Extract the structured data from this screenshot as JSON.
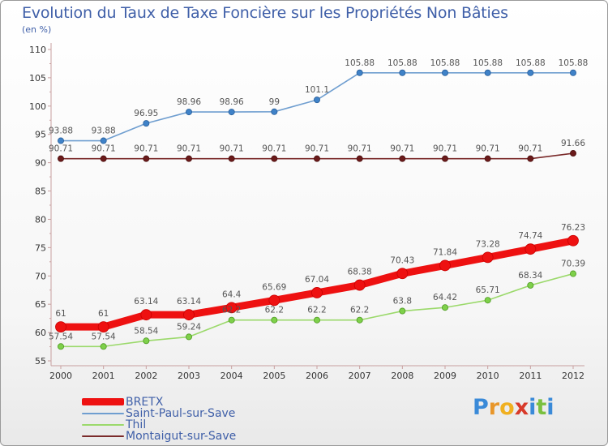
{
  "chart_data": {
    "type": "line",
    "title": "Evolution du Taux de Taxe Foncière sur les Propriétés Non Bâties",
    "subtitle": "(en %)",
    "xlabel": "",
    "ylabel": "",
    "x": [
      "2000",
      "2001",
      "2002",
      "2003",
      "2004",
      "2005",
      "2006",
      "2007",
      "2008",
      "2009",
      "2010",
      "2011",
      "2012"
    ],
    "ylim": [
      55,
      110
    ],
    "yticks": [
      55,
      60,
      65,
      70,
      75,
      80,
      85,
      90,
      95,
      100,
      105,
      110
    ],
    "grid": false,
    "legend_position": "bottom-left",
    "series": [
      {
        "name": "BRETX",
        "color": "#ee1111",
        "labels": [
          "61",
          "61",
          "63.14",
          "63.14",
          "64.4",
          "65.69",
          "67.04",
          "68.38",
          "70.43",
          "71.84",
          "73.28",
          "74.74",
          "76.23"
        ],
        "values": [
          61,
          61,
          63.14,
          63.14,
          64.4,
          65.69,
          67.04,
          68.38,
          70.43,
          71.84,
          73.28,
          74.74,
          76.23
        ]
      },
      {
        "name": "Saint-Paul-sur-Save",
        "color": "#6f9ed0",
        "labels": [
          "93.88",
          "93.88",
          "96.95",
          "98.96",
          "98.96",
          "99",
          "101.1",
          "105.88",
          "105.88",
          "105.88",
          "105.88",
          "105.88",
          "105.88"
        ],
        "values": [
          93.88,
          93.88,
          96.95,
          98.96,
          98.96,
          99,
          101.1,
          105.88,
          105.88,
          105.88,
          105.88,
          105.88,
          105.88
        ]
      },
      {
        "name": "Thil",
        "color": "#9bd96b",
        "labels": [
          "57.54",
          "57.54",
          "58.54",
          "59.24",
          "62.2",
          "62.2",
          "62.2",
          "62.2",
          "63.8",
          "64.42",
          "65.71",
          "68.34",
          "70.39"
        ],
        "values": [
          57.54,
          57.54,
          58.54,
          59.24,
          62.2,
          62.2,
          62.2,
          62.2,
          63.8,
          64.42,
          65.71,
          68.34,
          70.39
        ]
      },
      {
        "name": "Montaigut-sur-Save",
        "color": "#7a2a2a",
        "labels": [
          "90.71",
          "90.71",
          "90.71",
          "90.71",
          "90.71",
          "90.71",
          "90.71",
          "90.71",
          "90.71",
          "90.71",
          "90.71",
          "90.71",
          "91.66"
        ],
        "values": [
          90.71,
          90.71,
          90.71,
          90.71,
          90.71,
          90.71,
          90.71,
          90.71,
          90.71,
          90.71,
          90.71,
          90.71,
          91.66
        ]
      }
    ]
  },
  "logo": {
    "letters": [
      "P",
      "r",
      "o",
      "x",
      "i",
      "t",
      "i"
    ],
    "colors": [
      "#3a8ad8",
      "#e8962a",
      "#f0b020",
      "#d83a2a",
      "#3a8ad8",
      "#7ac040",
      "#3a8ad8"
    ]
  }
}
